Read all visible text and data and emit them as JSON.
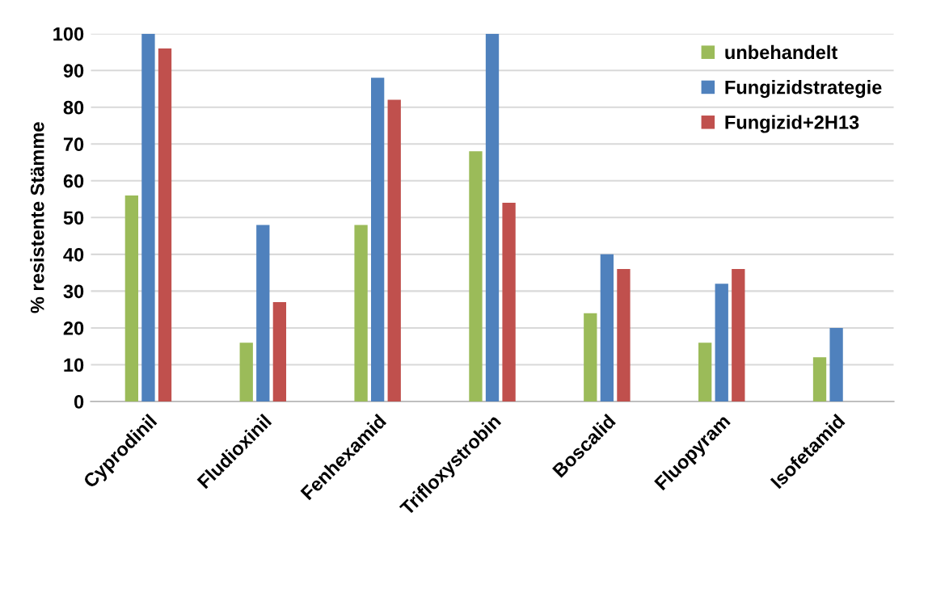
{
  "chart_data": {
    "type": "bar",
    "ylabel": "% resistente Stämme",
    "categories": [
      "Cyprodinil",
      "Fludioxinil",
      "Fenhexamid",
      "Trifloxystrobin",
      "Boscalid",
      "Fluopyram",
      "Isofetamid"
    ],
    "series": [
      {
        "name": "unbehandelt",
        "color": "#9bbb59",
        "values": [
          56,
          16,
          48,
          68,
          24,
          16,
          12
        ]
      },
      {
        "name": "Fungizidstrategie",
        "color": "#4f81bd",
        "values": [
          100,
          48,
          88,
          100,
          40,
          32,
          20
        ]
      },
      {
        "name": "Fungizid+2H13",
        "color": "#c0504d",
        "values": [
          96,
          27,
          82,
          54,
          36,
          36,
          null
        ]
      }
    ],
    "ylim": [
      0,
      100
    ],
    "yticks": [
      0,
      10,
      20,
      30,
      40,
      50,
      60,
      70,
      80,
      90,
      100
    ],
    "grid": "y",
    "legend": "top right"
  }
}
